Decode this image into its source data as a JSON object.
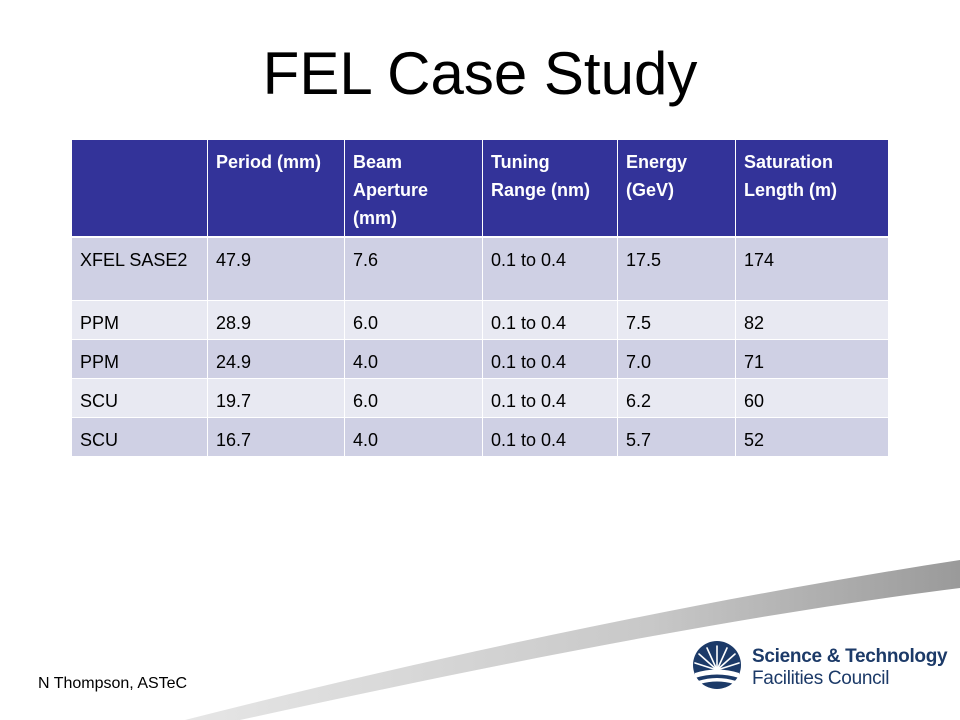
{
  "slide": {
    "title": "FEL Case Study",
    "author": "N Thompson, ASTeC"
  },
  "table": {
    "headers": [
      "",
      "Period (mm)",
      "Beam Aperture (mm)",
      "Tuning Range (nm)",
      "Energy (GeV)",
      "Saturation Length (m)"
    ],
    "rows": [
      [
        "XFEL SASE2",
        "47.9",
        "7.6",
        "0.1 to 0.4",
        "17.5",
        "174"
      ],
      [
        "PPM",
        "28.9",
        "6.0",
        "0.1 to 0.4",
        "7.5",
        "82"
      ],
      [
        "PPM",
        "24.9",
        "4.0",
        "0.1 to 0.4",
        "7.0",
        "71"
      ],
      [
        "SCU",
        "19.7",
        "6.0",
        "0.1 to 0.4",
        "6.2",
        "60"
      ],
      [
        "SCU",
        "16.7",
        "4.0",
        "0.1 to 0.4",
        "5.7",
        "52"
      ]
    ]
  },
  "logo": {
    "line1": "Science & Technology",
    "line2": "Facilities Council",
    "icon": "stfc-sunburst-icon"
  },
  "colors": {
    "header_bg": "#333399",
    "row_dark": "#cfd0e4",
    "row_light": "#e8e9f2",
    "logo_blue": "#1c3a68"
  }
}
